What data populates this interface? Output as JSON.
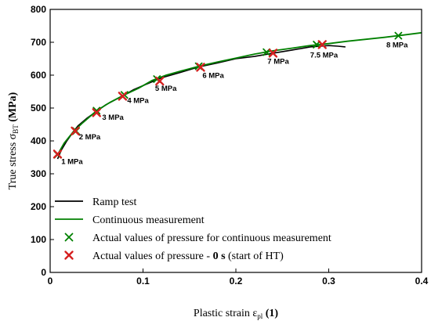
{
  "chart_data": {
    "type": "line",
    "xlabel": {
      "main": "Plastic strain ε",
      "sub": "pl",
      "unit": "(1)"
    },
    "ylabel": {
      "main": "True stress σ",
      "sub": "BT",
      "unit": "(MPa)"
    },
    "xlim": [
      0,
      0.4
    ],
    "ylim": [
      0,
      800
    ],
    "x_ticks": [
      0,
      0.1,
      0.2,
      0.3,
      0.4
    ],
    "x_tick_labels": [
      "0",
      "0.1",
      "0.2",
      "0.3",
      "0.4"
    ],
    "y_ticks": [
      0,
      100,
      200,
      300,
      400,
      500,
      600,
      700,
      800
    ],
    "y_tick_labels": [
      "0",
      "100",
      "200",
      "300",
      "400",
      "500",
      "600",
      "700",
      "800"
    ],
    "grid": false,
    "legend_position": "bottom-left",
    "series": [
      {
        "name": "Ramp test",
        "kind": "line",
        "color": "#000000",
        "x": [
          0.008,
          0.012,
          0.018,
          0.025,
          0.03,
          0.04,
          0.05,
          0.06,
          0.07,
          0.08,
          0.09,
          0.1,
          0.11,
          0.12,
          0.14,
          0.16,
          0.18,
          0.2,
          0.22,
          0.24,
          0.26,
          0.28,
          0.3,
          0.31,
          0.318
        ],
        "y": [
          345,
          372,
          400,
          428,
          446,
          470,
          490,
          510,
          525,
          540,
          556,
          568,
          580,
          592,
          608,
          625,
          637,
          650,
          657,
          667,
          676,
          686,
          690,
          688,
          686
        ]
      },
      {
        "name": "Continuous measurement",
        "kind": "line",
        "color": "#008000",
        "x": [
          0.008,
          0.015,
          0.025,
          0.035,
          0.05,
          0.065,
          0.08,
          0.095,
          0.11,
          0.125,
          0.14,
          0.16,
          0.18,
          0.2,
          0.22,
          0.24,
          0.26,
          0.28,
          0.3,
          0.32,
          0.34,
          0.36,
          0.38,
          0.4
        ],
        "y": [
          358,
          393,
          428,
          455,
          492,
          518,
          540,
          560,
          584,
          600,
          612,
          627,
          640,
          652,
          664,
          674,
          682,
          690,
          696,
          703,
          709,
          715,
          722,
          729
        ]
      },
      {
        "name": "Actual values of pressure for continuous measurement",
        "kind": "marker",
        "color": "#008000",
        "x": [
          0.008,
          0.028,
          0.05,
          0.08,
          0.115,
          0.16,
          0.233,
          0.287,
          0.375
        ],
        "y": [
          358,
          430,
          492,
          540,
          588,
          627,
          670,
          693,
          720
        ]
      },
      {
        "name": "Actual values of pressure - 0 s (start of HT)",
        "kind": "marker",
        "color": "#d62020",
        "x": [
          0.008,
          0.027,
          0.05,
          0.078,
          0.118,
          0.162,
          0.24,
          0.293
        ],
        "y": [
          360,
          430,
          486,
          536,
          582,
          624,
          667,
          693
        ]
      }
    ],
    "annotations": [
      {
        "text": "1 MPa",
        "x": 0.012,
        "y": 330
      },
      {
        "text": "2 MPa",
        "x": 0.031,
        "y": 405
      },
      {
        "text": "3 MPa",
        "x": 0.056,
        "y": 464
      },
      {
        "text": "4 MPa",
        "x": 0.083,
        "y": 515
      },
      {
        "text": "5 MPa",
        "x": 0.113,
        "y": 552
      },
      {
        "text": "6 MPa",
        "x": 0.164,
        "y": 592
      },
      {
        "text": "7 MPa",
        "x": 0.234,
        "y": 634
      },
      {
        "text": "7.5 MPa",
        "x": 0.28,
        "y": 653
      },
      {
        "text": "8 MPa",
        "x": 0.362,
        "y": 685
      }
    ],
    "legend": [
      {
        "label": "Ramp test",
        "symbol": "line",
        "color": "#000000"
      },
      {
        "label": "Continuous measurement",
        "symbol": "line",
        "color": "#008000"
      },
      {
        "label": "Actual values of pressure for continuous measurement",
        "symbol": "x",
        "color": "#008000"
      },
      {
        "label_parts": [
          "Actual values of pressure - ",
          "0 s",
          " (start of HT)"
        ],
        "symbol": "x",
        "color": "#d62020"
      }
    ]
  }
}
